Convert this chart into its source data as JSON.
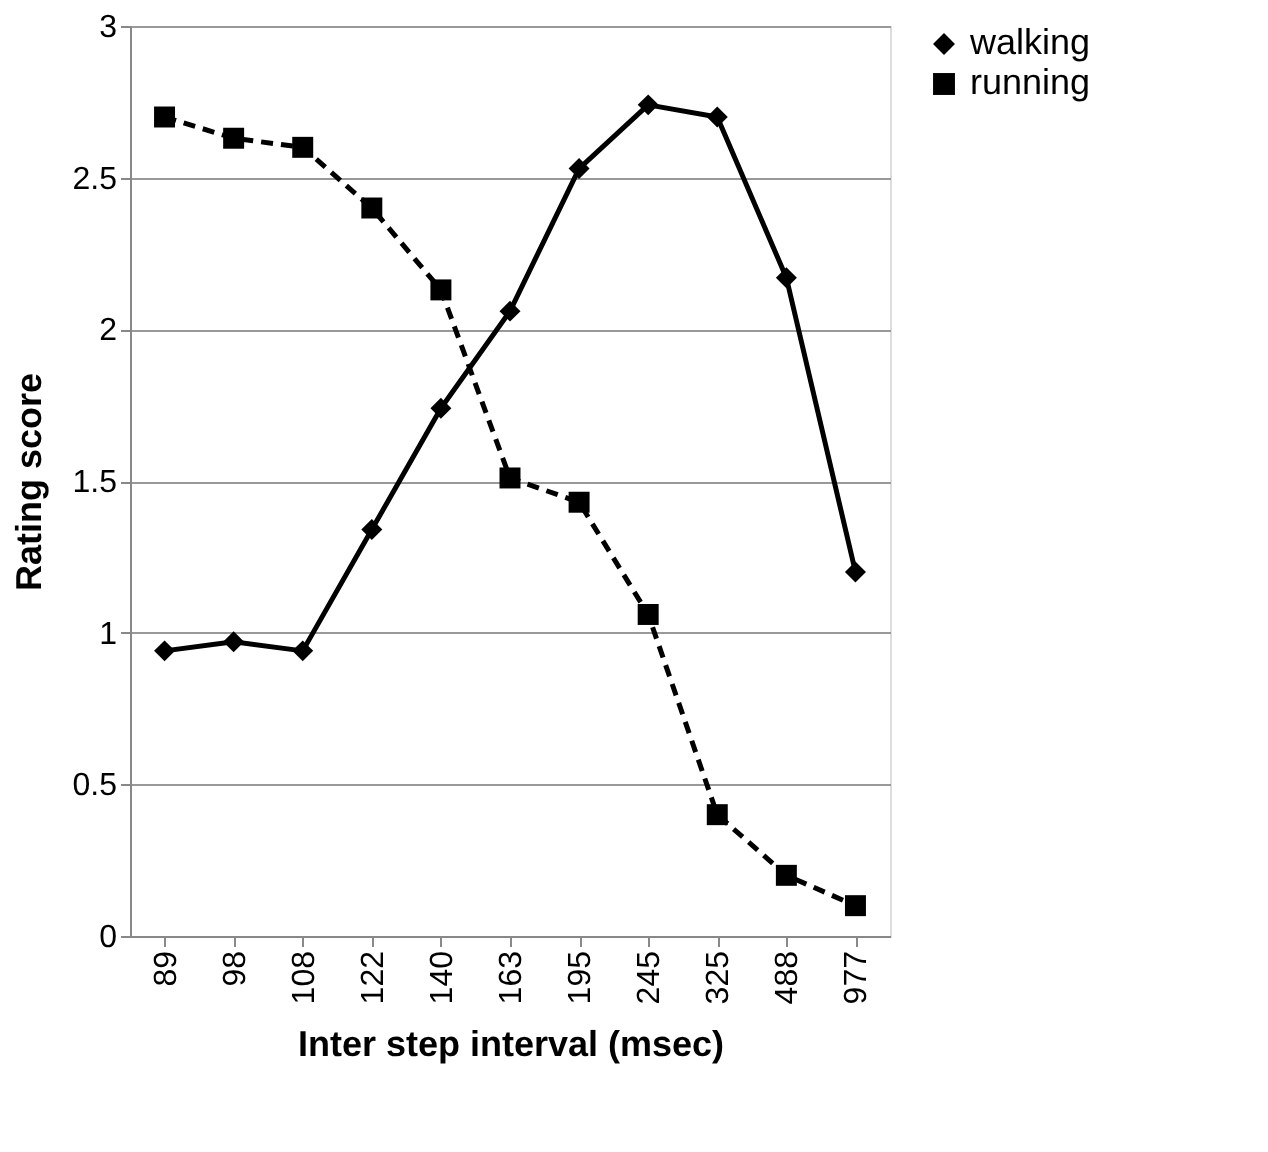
{
  "chart_data": {
    "type": "line",
    "xlabel": "Inter step interval (msec)",
    "ylabel": "Rating score",
    "categories": [
      "89",
      "98",
      "108",
      "122",
      "140",
      "163",
      "195",
      "245",
      "325",
      "488",
      "977"
    ],
    "series": [
      {
        "name": "walking",
        "color": "#000000",
        "marker": "diamond",
        "line_style": "solid",
        "values": [
          0.94,
          0.97,
          0.94,
          1.34,
          1.74,
          2.06,
          2.53,
          2.74,
          2.7,
          2.17,
          1.2
        ]
      },
      {
        "name": "running",
        "color": "#000000",
        "marker": "square",
        "line_style": "dashed",
        "values": [
          2.7,
          2.63,
          2.6,
          2.4,
          2.13,
          1.51,
          1.43,
          1.06,
          0.4,
          0.2,
          0.1
        ]
      }
    ],
    "ylim": [
      0,
      3
    ],
    "yticks": [
      0,
      0.5,
      1,
      1.5,
      2,
      2.5,
      3
    ],
    "grid": "y",
    "legend": "right"
  }
}
